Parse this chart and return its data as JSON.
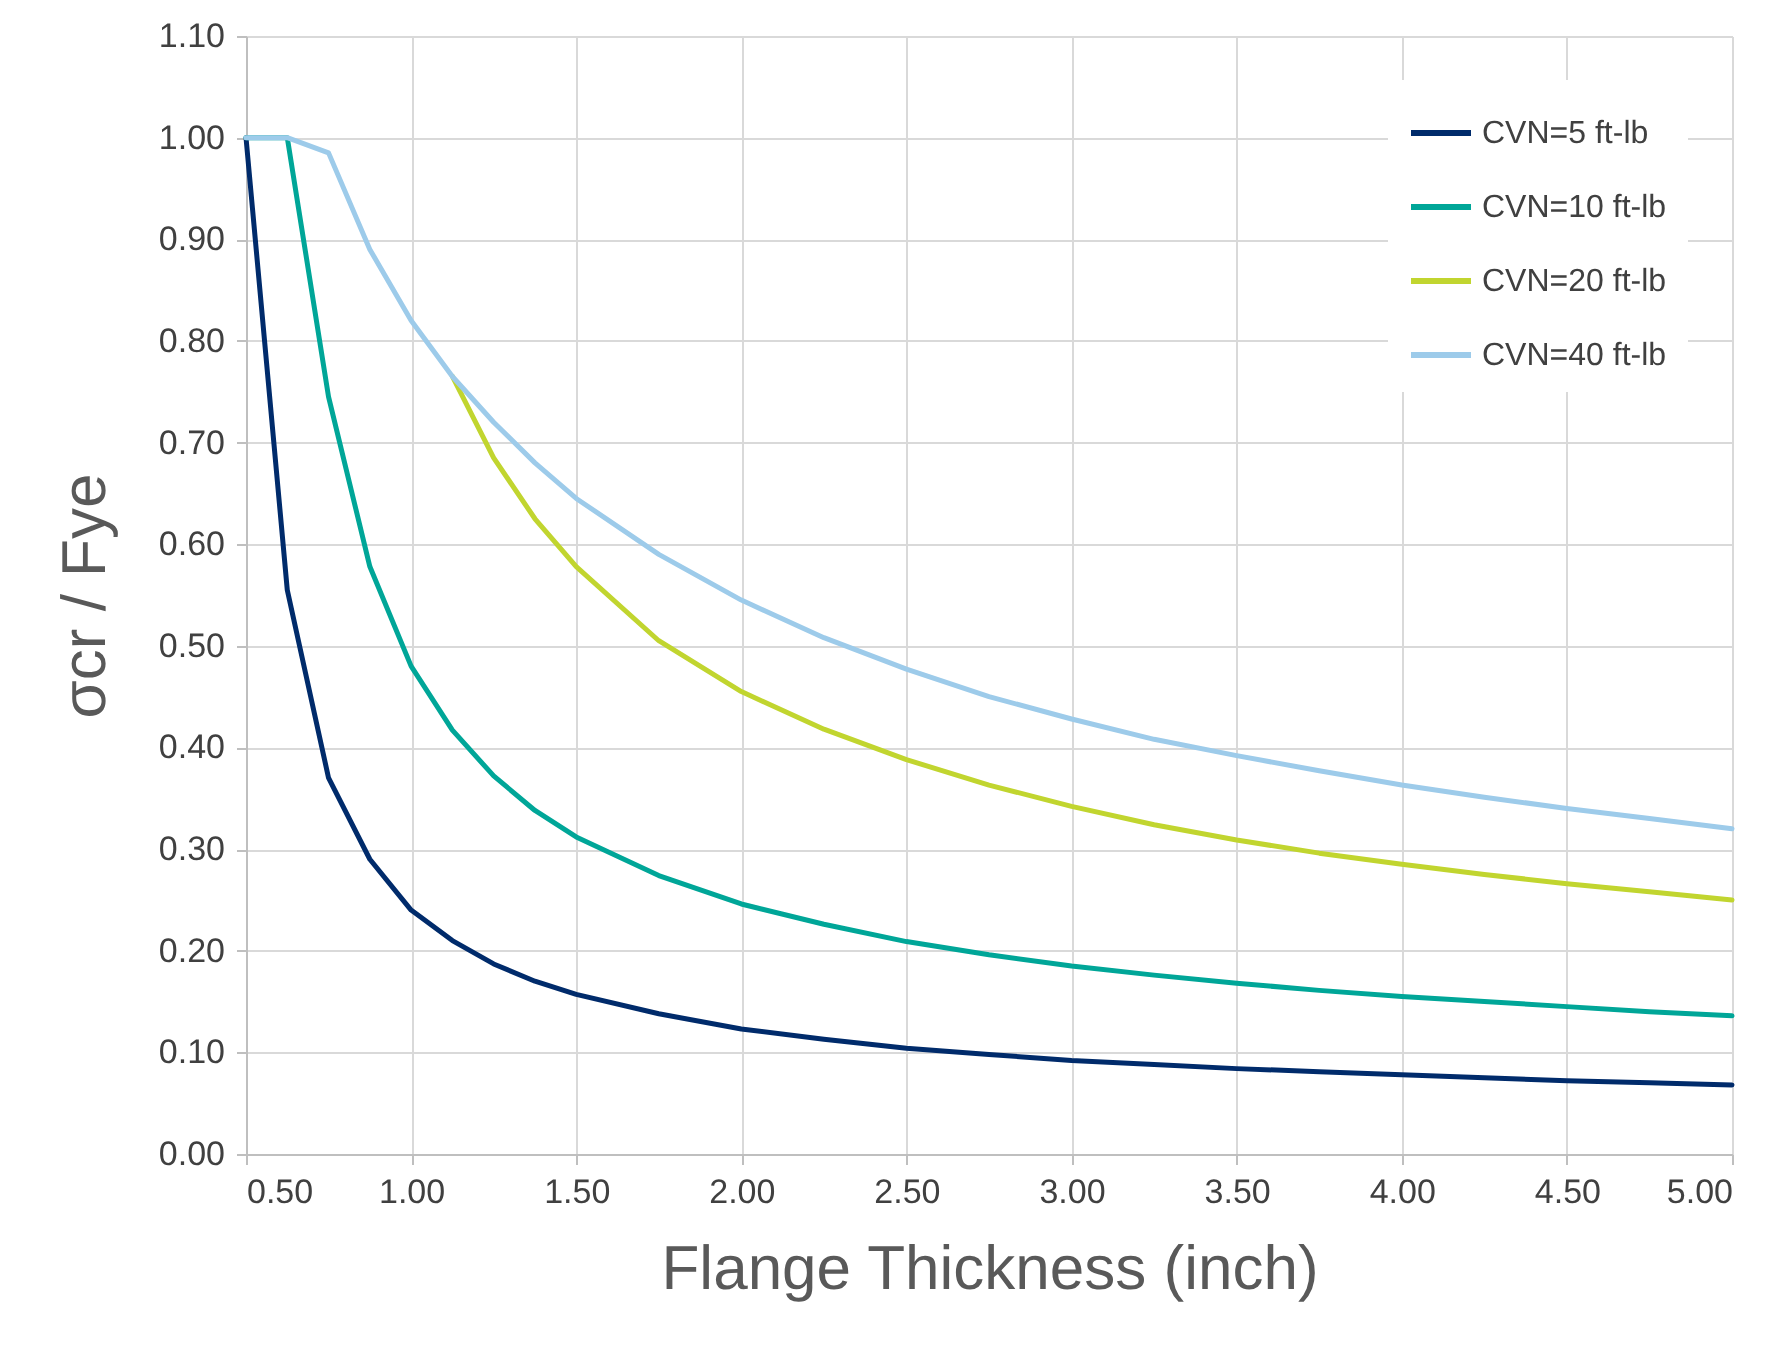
{
  "chart_data": {
    "type": "line",
    "xlabel": "Flange Thickness (inch)",
    "ylabel": "σcr / Fye",
    "x": [
      0.5,
      0.625,
      0.75,
      0.875,
      1.0,
      1.125,
      1.25,
      1.375,
      1.5,
      1.75,
      2.0,
      2.25,
      2.5,
      2.75,
      3.0,
      3.25,
      3.5,
      3.75,
      4.0,
      4.25,
      4.5,
      4.75,
      5.0
    ],
    "series": [
      {
        "name": "CVN=5 ft-lb",
        "color": "#002b6b",
        "values": [
          1.0,
          0.555,
          0.37,
          0.29,
          0.24,
          0.21,
          0.187,
          0.17,
          0.157,
          0.138,
          0.123,
          0.113,
          0.104,
          0.098,
          0.092,
          0.088,
          0.084,
          0.081,
          0.078,
          0.075,
          0.072,
          0.07,
          0.068
        ]
      },
      {
        "name": "CVN=10 ft-lb",
        "color": "#00a698",
        "values": [
          1.0,
          1.0,
          0.745,
          0.578,
          0.48,
          0.417,
          0.372,
          0.338,
          0.312,
          0.274,
          0.246,
          0.226,
          0.209,
          0.196,
          0.185,
          0.176,
          0.168,
          0.161,
          0.155,
          0.15,
          0.145,
          0.14,
          0.136
        ]
      },
      {
        "name": "CVN=20 ft-lb",
        "color": "#c1d52f",
        "values": [
          null,
          null,
          null,
          null,
          null,
          0.765,
          0.685,
          0.625,
          0.578,
          0.505,
          0.455,
          0.418,
          0.388,
          0.363,
          0.342,
          0.324,
          0.309,
          0.296,
          0.285,
          0.275,
          0.266,
          0.258,
          0.25
        ]
      },
      {
        "name": "CVN=40 ft-lb",
        "color": "#9dcbea",
        "values": [
          1.0,
          1.0,
          0.985,
          0.89,
          0.82,
          0.765,
          0.72,
          0.68,
          0.645,
          0.59,
          0.545,
          0.508,
          0.477,
          0.45,
          0.428,
          0.408,
          0.392,
          0.377,
          0.363,
          0.351,
          0.34,
          0.33,
          0.32
        ]
      }
    ],
    "xlim": [
      0.5,
      5.0
    ],
    "xticks": [
      {
        "value": 0.5,
        "label": "0.50"
      },
      {
        "value": 1.0,
        "label": "1.00"
      },
      {
        "value": 1.5,
        "label": "1.50"
      },
      {
        "value": 2.0,
        "label": "2.00"
      },
      {
        "value": 2.5,
        "label": "2.50"
      },
      {
        "value": 3.0,
        "label": "3.00"
      },
      {
        "value": 3.5,
        "label": "3.50"
      },
      {
        "value": 4.0,
        "label": "4.00"
      },
      {
        "value": 4.5,
        "label": "4.50"
      },
      {
        "value": 5.0,
        "label": "5.00"
      }
    ],
    "ylim": [
      0,
      1.1
    ],
    "yticks": [
      {
        "value": 0,
        "label": "0.00"
      },
      {
        "value": 0.1,
        "label": "0.10"
      },
      {
        "value": 0.2,
        "label": "0.20"
      },
      {
        "value": 0.3,
        "label": "0.30"
      },
      {
        "value": 0.4,
        "label": "0.40"
      },
      {
        "value": 0.5,
        "label": "0.50"
      },
      {
        "value": 0.6,
        "label": "0.60"
      },
      {
        "value": 0.7,
        "label": "0.70"
      },
      {
        "value": 0.8,
        "label": "0.80"
      },
      {
        "value": 0.9,
        "label": "0.90"
      },
      {
        "value": 1.0,
        "label": "1.00"
      },
      {
        "value": 1.1,
        "label": "1.10"
      }
    ],
    "grid": true,
    "legend": "top right",
    "marker": "none",
    "line_style": "solid"
  }
}
